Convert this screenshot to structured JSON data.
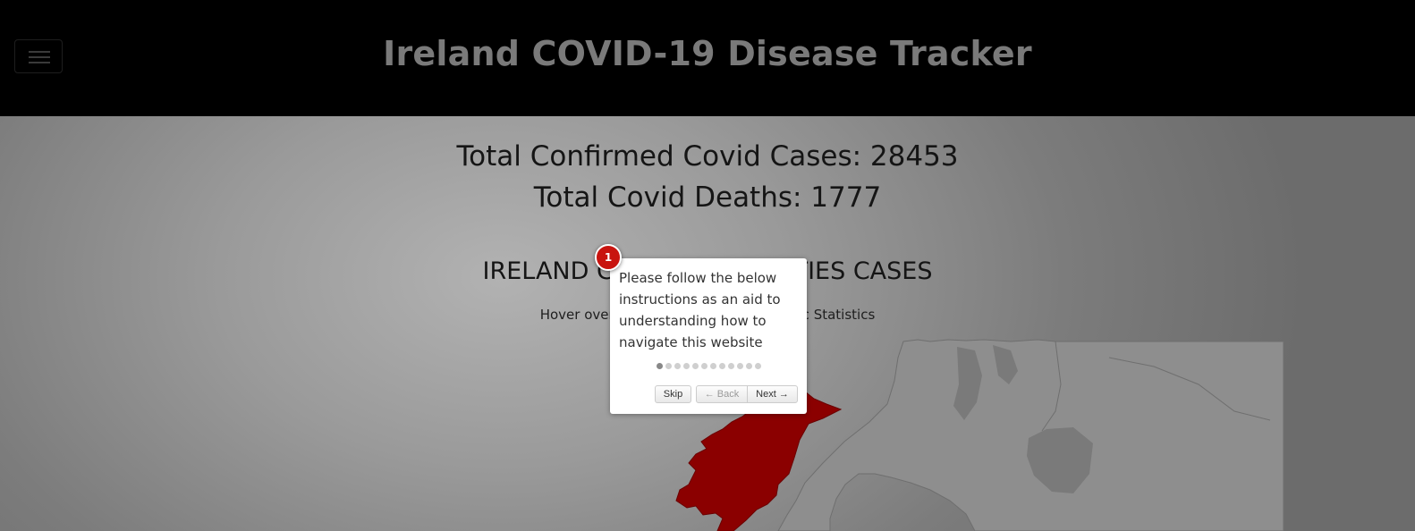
{
  "header": {
    "title": "Ireland COVID-19 Disease Tracker",
    "menu_icon": "hamburger-icon"
  },
  "stats": {
    "confirmed_cases": "Total Confirmed Covid Cases: 28453",
    "deaths": "Total Covid Deaths: 1777"
  },
  "section": {
    "title": "IRELAND COVID-19 COUNTIES CASES",
    "subtitle": "Hover over the counties to view specific Statistics"
  },
  "map": {
    "highlight_color": "#8b0000",
    "land_color": "#8e8e8e"
  },
  "tour": {
    "step_number": "1",
    "text": "Please follow the below instructions as an aid to understanding how to navigate this website",
    "total_steps": 12,
    "current_step": 1,
    "skip_label": "Skip",
    "back_label": "← Back",
    "next_label": "Next →"
  }
}
